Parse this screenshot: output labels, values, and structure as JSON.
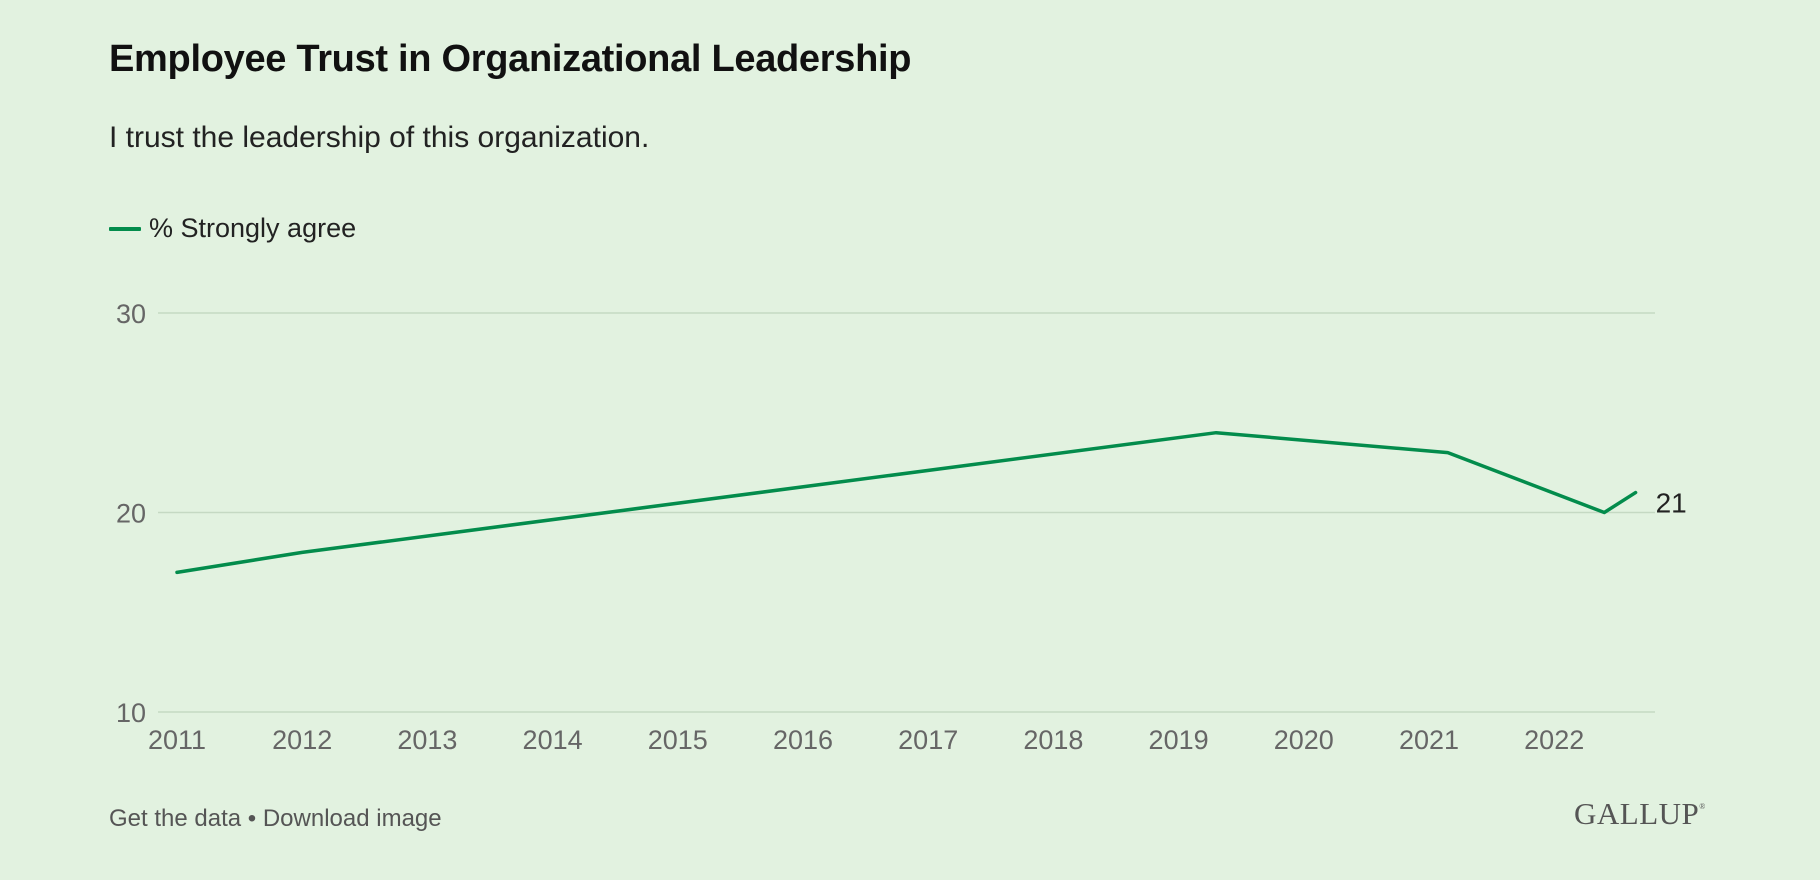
{
  "header": {
    "title": "Employee Trust in Organizational Leadership",
    "subtitle": "I trust the leadership of this organization."
  },
  "legend": {
    "label": "% Strongly agree",
    "color": "#038c4c"
  },
  "footer": {
    "get_data": "Get the data",
    "separator": "•",
    "download_image": "Download image",
    "logo": "GALLUP",
    "logo_mark": "®"
  },
  "colors": {
    "background": "#e2f2e0",
    "line": "#038c4c",
    "grid": "#c5d9c3",
    "axis_text": "#666666"
  },
  "chart_data": {
    "type": "line",
    "title": "Employee Trust in Organizational Leadership",
    "subtitle": "I trust the leadership of this organization.",
    "xlabel": "",
    "ylabel": "",
    "xlim": [
      2011,
      2022.75
    ],
    "ylim": [
      10,
      30
    ],
    "yticks": [
      10,
      20,
      30
    ],
    "xticks": [
      2011,
      2012,
      2013,
      2014,
      2015,
      2016,
      2017,
      2018,
      2019,
      2020,
      2021,
      2022
    ],
    "grid": true,
    "legend_position": "top-left",
    "series": [
      {
        "name": "% Strongly agree",
        "x": [
          2011,
          2012,
          2019.3,
          2021.15,
          2022.4,
          2022.65
        ],
        "y": [
          17,
          18,
          24,
          23,
          20,
          21
        ],
        "end_label": "21"
      }
    ]
  }
}
